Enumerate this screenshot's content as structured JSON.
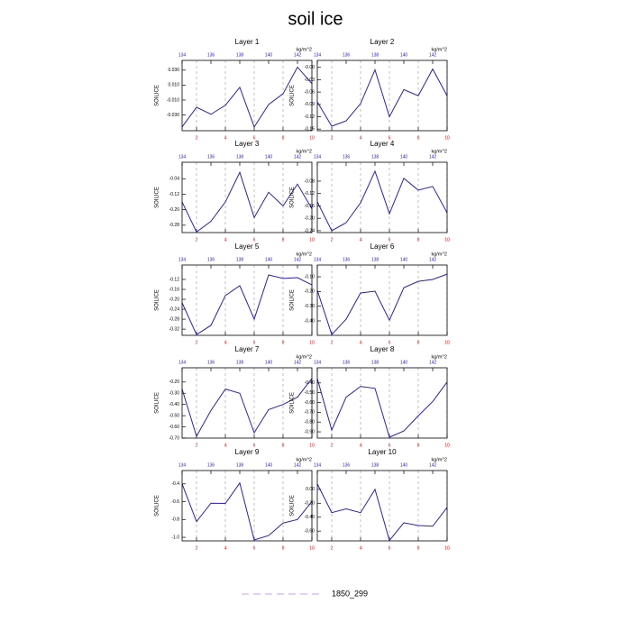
{
  "title": "soil ice",
  "legend": {
    "label": "1850_299",
    "color": "#c8a0ec"
  },
  "chart_data": [
    {
      "type": "line",
      "title": "Layer 1",
      "ylabel": "SOILICE",
      "x": [
        1,
        2,
        3,
        4,
        5,
        6,
        7,
        8,
        9,
        10
      ],
      "values": [
        -0.046,
        -0.0197,
        -0.029,
        -0.017,
        0.007,
        -0.046,
        -0.016,
        -0.0015,
        0.034,
        0.012
      ],
      "color": "#2c1fb0",
      "xlim": [
        1,
        10
      ],
      "xticks": [
        2,
        4,
        6,
        8,
        10
      ],
      "x2lim": [
        134,
        143
      ],
      "x2ticks": [
        134,
        136,
        138,
        140,
        142
      ],
      "x2label": "kg/m^2",
      "ylim": [
        -0.051,
        0.043
      ],
      "yticks": [
        {
          "value": 0.03,
          "label": "0.030"
        },
        {
          "value": 0.01,
          "label": "0.010"
        },
        {
          "value": -0.01,
          "label": "-0.010"
        },
        {
          "value": -0.03,
          "label": "-0.030"
        }
      ],
      "grid": true
    },
    {
      "type": "line",
      "title": "Layer 2",
      "ylabel": "SOILICE",
      "x": [
        1,
        2,
        3,
        4,
        5,
        6,
        7,
        8,
        9,
        10
      ],
      "values": [
        -0.084,
        -0.143,
        -0.13,
        -0.088,
        -0.006,
        -0.12,
        -0.054,
        -0.069,
        -0.004,
        -0.069
      ],
      "color": "#2c1fb0",
      "xlim": [
        1,
        10
      ],
      "xticks": [
        2,
        4,
        6,
        8,
        10
      ],
      "x2lim": [
        134,
        143
      ],
      "x2ticks": [
        134,
        136,
        138,
        140,
        142
      ],
      "x2label": "kg/m^2",
      "ylim": [
        -0.154,
        0.017
      ],
      "yticks": [
        {
          "value": 0,
          "label": "-0.00"
        },
        -0.03,
        -0.06,
        -0.09,
        -0.12,
        -0.15
      ],
      "grid": true
    },
    {
      "type": "line",
      "title": "Layer 3",
      "ylabel": "SOILICE",
      "x": [
        1,
        2,
        3,
        4,
        5,
        6,
        7,
        8,
        9,
        10
      ],
      "values": [
        -0.16,
        -0.315,
        -0.26,
        -0.16,
        -0.007,
        -0.24,
        -0.11,
        -0.18,
        -0.068,
        -0.195
      ],
      "color": "#2c1fb0",
      "xlim": [
        1,
        10
      ],
      "xticks": [
        2,
        4,
        6,
        8,
        10
      ],
      "x2lim": [
        134,
        143
      ],
      "x2ticks": [
        134,
        136,
        138,
        140,
        142
      ],
      "x2label": "kg/m^2",
      "ylim": [
        -0.318,
        0.045
      ],
      "yticks": [
        -0.04,
        -0.12,
        {
          "value": -0.2,
          "label": "-0.20"
        },
        -0.28
      ],
      "grid": true
    },
    {
      "type": "line",
      "title": "Layer 4",
      "ylabel": "SOILICE",
      "x": [
        1,
        2,
        3,
        4,
        5,
        6,
        7,
        8,
        9,
        10
      ],
      "values": [
        -0.147,
        -0.24,
        -0.214,
        -0.15,
        -0.048,
        -0.185,
        -0.071,
        -0.109,
        -0.097,
        -0.182
      ],
      "color": "#2c1fb0",
      "xlim": [
        1,
        10
      ],
      "xticks": [
        2,
        4,
        6,
        8,
        10
      ],
      "x2lim": [
        134,
        143
      ],
      "x2ticks": [
        134,
        136,
        138,
        140,
        142
      ],
      "x2label": "kg/m^2",
      "ylim": [
        -0.246,
        -0.019
      ],
      "yticks": [
        -0.08,
        -0.12,
        -0.16,
        {
          "value": -0.2,
          "label": "-0.20"
        },
        -0.24
      ],
      "grid": true
    },
    {
      "type": "line",
      "title": "Layer 5",
      "ylabel": "SOILICE",
      "x": [
        1,
        2,
        3,
        4,
        5,
        6,
        7,
        8,
        9,
        10
      ],
      "values": [
        -0.214,
        -0.342,
        -0.305,
        -0.185,
        -0.145,
        -0.28,
        -0.102,
        -0.116,
        -0.113,
        -0.142
      ],
      "color": "#2c1fb0",
      "xlim": [
        1,
        10
      ],
      "xticks": [
        2,
        4,
        6,
        8,
        10
      ],
      "x2lim": [
        134,
        143
      ],
      "x2ticks": [
        134,
        136,
        138,
        140,
        142
      ],
      "x2label": "kg/m^2",
      "ylim": [
        -0.345,
        -0.062
      ],
      "yticks": [
        -0.12,
        -0.16,
        {
          "value": -0.2,
          "label": "-0.20"
        },
        -0.24,
        -0.28,
        -0.32
      ],
      "grid": true
    },
    {
      "type": "line",
      "title": "Layer 6",
      "ylabel": "SOILICE",
      "x": [
        1,
        2,
        3,
        4,
        5,
        6,
        7,
        8,
        9,
        10
      ],
      "values": [
        -0.192,
        -0.493,
        -0.388,
        -0.21,
        -0.198,
        -0.395,
        -0.174,
        -0.131,
        -0.118,
        -0.082
      ],
      "color": "#2c1fb0",
      "xlim": [
        1,
        10
      ],
      "xticks": [
        2,
        4,
        6,
        8,
        10
      ],
      "x2lim": [
        134,
        143
      ],
      "x2ticks": [
        134,
        136,
        138,
        140,
        142
      ],
      "x2label": "kg/m^2",
      "ylim": [
        -0.498,
        -0.02
      ],
      "yticks": [
        {
          "value": -0.1,
          "label": "-0.10"
        },
        {
          "value": -0.2,
          "label": "-0.20"
        },
        {
          "value": -0.3,
          "label": "-0.30"
        },
        {
          "value": -0.4,
          "label": "-0.40"
        }
      ],
      "grid": true
    },
    {
      "type": "line",
      "title": "Layer 7",
      "ylabel": "SOILICE",
      "x": [
        1,
        2,
        3,
        4,
        5,
        6,
        7,
        8,
        9,
        10
      ],
      "values": [
        -0.263,
        -0.684,
        -0.454,
        -0.263,
        -0.3,
        -0.652,
        -0.446,
        -0.4,
        -0.335,
        -0.168
      ],
      "color": "#2c1fb0",
      "xlim": [
        1,
        10
      ],
      "xticks": [
        2,
        4,
        6,
        8,
        10
      ],
      "x2lim": [
        134,
        143
      ],
      "x2ticks": [
        134,
        136,
        138,
        140,
        142
      ],
      "x2label": "kg/m^2",
      "ylim": [
        -0.7,
        -0.073
      ],
      "yticks": [
        {
          "value": -0.2,
          "label": "-0.20"
        },
        {
          "value": -0.3,
          "label": "-0.30"
        },
        {
          "value": -0.4,
          "label": "-0.40"
        },
        {
          "value": -0.5,
          "label": "-0.50"
        },
        {
          "value": -0.6,
          "label": "-0.60"
        },
        {
          "value": -0.7,
          "label": "-0.70"
        }
      ],
      "grid": true
    },
    {
      "type": "line",
      "title": "Layer 8",
      "ylabel": "SOILICE",
      "x": [
        1,
        2,
        3,
        4,
        5,
        6,
        7,
        8,
        9,
        10
      ],
      "values": [
        -0.355,
        -0.882,
        -0.545,
        -0.436,
        -0.455,
        -0.955,
        -0.891,
        -0.736,
        -0.59,
        -0.391
      ],
      "color": "#2c1fb0",
      "xlim": [
        1,
        10
      ],
      "xticks": [
        2,
        4,
        6,
        8,
        10
      ],
      "x2lim": [
        134,
        143
      ],
      "x2ticks": [
        134,
        136,
        138,
        140,
        142
      ],
      "x2label": "kg/m^2",
      "ylim": [
        -0.964,
        -0.245
      ],
      "yticks": [
        {
          "value": -0.4,
          "label": "-0.40"
        },
        {
          "value": -0.5,
          "label": "-0.50"
        },
        {
          "value": -0.6,
          "label": "-0.60"
        },
        {
          "value": -0.7,
          "label": "-0.70"
        },
        {
          "value": -0.8,
          "label": "-0.80"
        },
        {
          "value": -0.9,
          "label": "-0.90"
        }
      ],
      "grid": true
    },
    {
      "type": "line",
      "title": "Layer 9",
      "ylabel": "SOILICE",
      "x": [
        1,
        2,
        3,
        4,
        5,
        6,
        7,
        8,
        9,
        10
      ],
      "values": [
        -0.4,
        -0.824,
        -0.617,
        -0.62,
        -0.39,
        -1.03,
        -0.98,
        -0.84,
        -0.8,
        -0.597
      ],
      "color": "#2c1fb0",
      "xlim": [
        1,
        10
      ],
      "xticks": [
        2,
        4,
        6,
        8,
        10
      ],
      "x2lim": [
        134,
        143
      ],
      "x2ticks": [
        134,
        136,
        138,
        140,
        142
      ],
      "x2label": "kg/m^2",
      "ylim": [
        -1.04,
        -0.25
      ],
      "yticks": [
        -0.4,
        -0.6,
        -0.8,
        {
          "value": -1,
          "label": "-1.0"
        }
      ],
      "grid": true
    },
    {
      "type": "line",
      "title": "Layer 10",
      "ylabel": "SOILICE",
      "x": [
        1,
        2,
        3,
        4,
        5,
        6,
        7,
        8,
        9,
        10
      ],
      "values": [
        0.077,
        -0.335,
        -0.28,
        -0.335,
        0.0,
        -0.735,
        -0.48,
        -0.52,
        -0.53,
        -0.26
      ],
      "color": "#2c1fb0",
      "xlim": [
        1,
        10
      ],
      "xticks": [
        2,
        4,
        6,
        8,
        10
      ],
      "x2lim": [
        134,
        143
      ],
      "x2ticks": [
        134,
        136,
        138,
        140,
        142
      ],
      "x2label": "kg/m^2",
      "ylim": [
        -0.74,
        0.27
      ],
      "yticks": [
        {
          "value": 0,
          "label": "0.00"
        },
        {
          "value": -0.2,
          "label": "-0.20"
        },
        {
          "value": -0.4,
          "label": "-0.40"
        },
        {
          "value": -0.6,
          "label": "-0.60"
        }
      ],
      "grid": true
    }
  ]
}
